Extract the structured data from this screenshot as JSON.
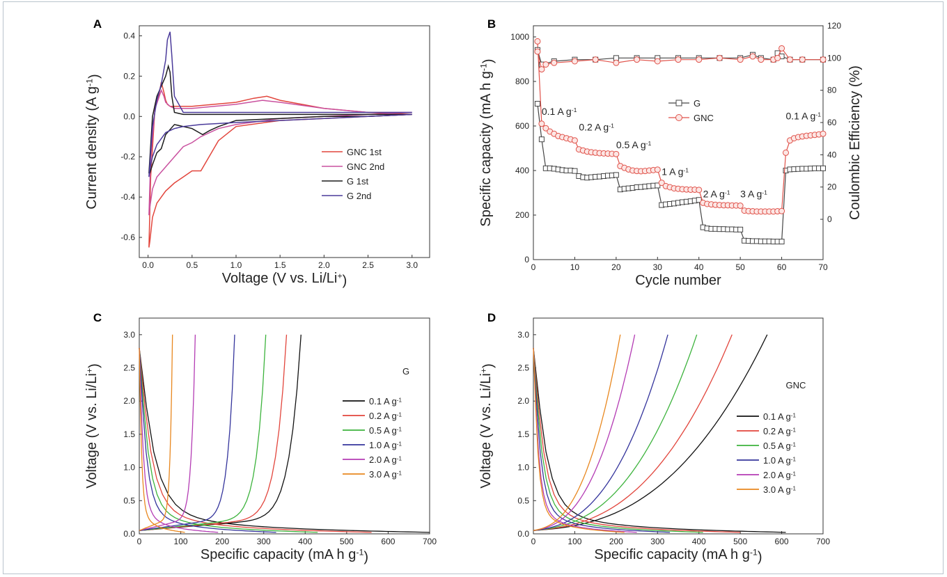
{
  "figure": {
    "labels": [
      "A",
      "B",
      "C",
      "D"
    ]
  },
  "chart_data": [
    {
      "panel": "A",
      "type": "line",
      "xlabel": "Voltage (V vs. Li/Li",
      "xlabel_sup": "+",
      "xlabel_tail": ")",
      "ylabel": "Current density (A g",
      "ylabel_sup": "-1",
      "ylabel_tail": ")",
      "xlim": [
        -0.1,
        3.2
      ],
      "ylim": [
        -0.7,
        0.45
      ],
      "xticks": [
        "0.0",
        "0.5",
        "1.0",
        "1.5",
        "2.0",
        "2.5",
        "3.0"
      ],
      "yticks": [
        "-0.6",
        "-0.4",
        "-0.2",
        "0.0",
        "0.2",
        "0.4"
      ],
      "legend_position": "right",
      "series": [
        {
          "name": "GNC 1st",
          "color": "#e2453c",
          "x": [
            3.0,
            2.5,
            2.0,
            1.5,
            1.0,
            0.8,
            0.6,
            0.5,
            0.4,
            0.3,
            0.2,
            0.1,
            0.05,
            0.02,
            0.01,
            0.03,
            0.08,
            0.12,
            0.15,
            0.18,
            0.2,
            0.22,
            0.25,
            0.3,
            0.5,
            1.0,
            1.2,
            1.35,
            1.5,
            2.0,
            2.5,
            3.0
          ],
          "y": [
            0.01,
            0.0,
            -0.01,
            -0.02,
            -0.05,
            -0.12,
            -0.27,
            -0.27,
            -0.3,
            -0.33,
            -0.37,
            -0.43,
            -0.5,
            -0.62,
            -0.65,
            -0.3,
            0.05,
            0.1,
            0.17,
            0.12,
            0.08,
            0.06,
            0.05,
            0.05,
            0.05,
            0.07,
            0.09,
            0.1,
            0.08,
            0.04,
            0.02,
            0.01
          ]
        },
        {
          "name": "GNC 2nd",
          "color": "#c9519f",
          "x": [
            3.0,
            2.5,
            2.0,
            1.5,
            1.0,
            0.8,
            0.6,
            0.5,
            0.4,
            0.3,
            0.2,
            0.1,
            0.05,
            0.02,
            0.01,
            0.03,
            0.08,
            0.12,
            0.15,
            0.18,
            0.2,
            0.25,
            0.3,
            0.5,
            1.0,
            1.3,
            1.5,
            2.0,
            2.5,
            3.0
          ],
          "y": [
            0.02,
            0.01,
            0.0,
            -0.01,
            -0.04,
            -0.06,
            -0.1,
            -0.13,
            -0.15,
            -0.2,
            -0.25,
            -0.3,
            -0.36,
            -0.45,
            -0.49,
            -0.2,
            0.04,
            0.09,
            0.13,
            0.1,
            0.07,
            0.05,
            0.04,
            0.04,
            0.06,
            0.08,
            0.07,
            0.04,
            0.02,
            0.02
          ]
        },
        {
          "name": "G 1st",
          "color": "#1c1c1c",
          "x": [
            3.0,
            2.5,
            2.0,
            1.5,
            1.0,
            0.8,
            0.7,
            0.62,
            0.5,
            0.3,
            0.2,
            0.15,
            0.1,
            0.05,
            0.02,
            0.01,
            0.05,
            0.1,
            0.15,
            0.2,
            0.23,
            0.25,
            0.27,
            0.3,
            0.4,
            0.6,
            1.0,
            1.5,
            2.0,
            2.5,
            3.0
          ],
          "y": [
            0.01,
            0.0,
            0.0,
            -0.01,
            -0.02,
            -0.05,
            -0.07,
            -0.09,
            -0.06,
            -0.04,
            -0.09,
            -0.16,
            -0.18,
            -0.24,
            -0.28,
            -0.28,
            0.0,
            0.1,
            0.15,
            0.2,
            0.25,
            0.22,
            0.1,
            0.02,
            0.01,
            0.01,
            0.01,
            0.01,
            0.01,
            0.01,
            0.01
          ]
        },
        {
          "name": "G 2nd",
          "color": "#4a3a9a",
          "x": [
            3.0,
            2.5,
            2.0,
            1.5,
            1.0,
            0.6,
            0.4,
            0.3,
            0.2,
            0.1,
            0.05,
            0.02,
            0.01,
            0.05,
            0.1,
            0.15,
            0.2,
            0.22,
            0.25,
            0.27,
            0.3,
            0.4,
            0.6,
            1.0,
            1.5,
            2.0,
            2.5,
            3.0
          ],
          "y": [
            0.01,
            0.0,
            -0.01,
            -0.02,
            -0.03,
            -0.04,
            -0.05,
            -0.06,
            -0.08,
            -0.14,
            -0.2,
            -0.26,
            -0.3,
            -0.05,
            0.08,
            0.16,
            0.28,
            0.38,
            0.42,
            0.3,
            0.1,
            0.02,
            0.02,
            0.02,
            0.02,
            0.02,
            0.02,
            0.02
          ]
        }
      ]
    },
    {
      "panel": "B",
      "type": "scatter",
      "xlabel": "Cycle number",
      "ylabel": "Specific capacity (mA h g",
      "ylabel_sup": "-1",
      "ylabel_tail": ")",
      "y2label": "Coulombic Efficiency (%)",
      "xlim": [
        0,
        70
      ],
      "ylim": [
        0,
        1050
      ],
      "y2lim": [
        -25,
        120
      ],
      "xticks": [
        "0",
        "10",
        "20",
        "30",
        "40",
        "50",
        "60",
        "70"
      ],
      "yticks": [
        "0",
        "200",
        "400",
        "600",
        "800",
        "1000"
      ],
      "y2ticks": [
        "0",
        "20",
        "40",
        "60",
        "80",
        "100",
        "120"
      ],
      "legend_position": "center-right",
      "annotations": [
        {
          "text": "0.1 A g",
          "sup": "-1",
          "x": 2,
          "y": 650
        },
        {
          "text": "0.2 A g",
          "sup": "-1",
          "x": 11,
          "y": 580
        },
        {
          "text": "0.5 A g",
          "sup": "-1",
          "x": 20,
          "y": 500
        },
        {
          "text": "1 A g",
          "sup": "-1",
          "x": 31,
          "y": 380
        },
        {
          "text": "2 A g",
          "sup": "-1",
          "x": 41,
          "y": 280
        },
        {
          "text": "3 A g",
          "sup": "-1",
          "x": 50,
          "y": 280
        },
        {
          "text": "0.1 A g",
          "sup": "-1",
          "x": 61,
          "y": 630
        }
      ],
      "series": [
        {
          "name": "G",
          "color": "#444444",
          "marker": "square",
          "axis": "left",
          "x": [
            1,
            2,
            3,
            4,
            5,
            6,
            7,
            8,
            9,
            10,
            11,
            12,
            13,
            14,
            15,
            16,
            17,
            18,
            19,
            20,
            21,
            22,
            23,
            24,
            25,
            26,
            27,
            28,
            29,
            30,
            31,
            32,
            33,
            34,
            35,
            36,
            37,
            38,
            39,
            40,
            41,
            42,
            43,
            44,
            45,
            46,
            47,
            48,
            49,
            50,
            51,
            52,
            53,
            54,
            55,
            56,
            57,
            58,
            59,
            60,
            61,
            62,
            63,
            64,
            65,
            66,
            67,
            68,
            69,
            70
          ],
          "y": [
            700,
            540,
            410,
            410,
            408,
            405,
            402,
            400,
            400,
            398,
            375,
            370,
            368,
            370,
            372,
            373,
            375,
            377,
            378,
            380,
            315,
            318,
            320,
            322,
            325,
            326,
            328,
            330,
            332,
            333,
            245,
            248,
            250,
            252,
            255,
            258,
            260,
            262,
            265,
            268,
            145,
            140,
            138,
            138,
            137,
            137,
            136,
            136,
            135,
            135,
            85,
            84,
            83,
            83,
            82,
            82,
            82,
            81,
            81,
            81,
            400,
            405,
            406,
            407,
            408,
            408,
            409,
            410,
            410,
            410
          ]
        },
        {
          "name": "GNC",
          "color": "#e0524a",
          "marker": "circle",
          "axis": "left",
          "x": [
            1,
            2,
            3,
            4,
            5,
            6,
            7,
            8,
            9,
            10,
            11,
            12,
            13,
            14,
            15,
            16,
            17,
            18,
            19,
            20,
            21,
            22,
            23,
            24,
            25,
            26,
            27,
            28,
            29,
            30,
            31,
            32,
            33,
            34,
            35,
            36,
            37,
            38,
            39,
            40,
            41,
            42,
            43,
            44,
            45,
            46,
            47,
            48,
            49,
            50,
            51,
            52,
            53,
            54,
            55,
            56,
            57,
            58,
            59,
            60,
            61,
            62,
            63,
            64,
            65,
            66,
            67,
            68,
            69,
            70
          ],
          "y": [
            980,
            610,
            590,
            575,
            565,
            555,
            550,
            545,
            540,
            535,
            495,
            490,
            485,
            482,
            480,
            478,
            477,
            476,
            475,
            474,
            420,
            412,
            405,
            400,
            398,
            397,
            398,
            400,
            402,
            404,
            345,
            330,
            325,
            320,
            318,
            316,
            315,
            314,
            314,
            313,
            255,
            250,
            248,
            246,
            245,
            244,
            244,
            243,
            243,
            242,
            220,
            218,
            217,
            216,
            216,
            216,
            216,
            216,
            217,
            218,
            480,
            535,
            545,
            550,
            553,
            556,
            558,
            560,
            562,
            565
          ]
        },
        {
          "name": "G",
          "color": "#444444",
          "marker": "square",
          "axis": "right",
          "x": [
            1,
            2,
            5,
            10,
            15,
            20,
            25,
            30,
            35,
            40,
            45,
            50,
            53,
            55,
            58,
            59,
            60,
            62,
            65,
            70
          ],
          "y": [
            105,
            96,
            98,
            99,
            99,
            100,
            100,
            100,
            100,
            100,
            100,
            100,
            102,
            100,
            99,
            103,
            101,
            99,
            99,
            99
          ]
        },
        {
          "name": "GNC",
          "color": "#e0524a",
          "marker": "circle",
          "axis": "right",
          "x": [
            1,
            2,
            3,
            5,
            10,
            15,
            20,
            25,
            30,
            35,
            40,
            45,
            50,
            53,
            55,
            58,
            59,
            60,
            62,
            65,
            70
          ],
          "y": [
            104,
            93,
            96,
            97,
            98,
            99,
            97,
            99,
            98,
            99,
            99,
            100,
            99,
            101,
            99,
            99,
            100,
            106,
            99,
            99,
            99
          ]
        }
      ]
    },
    {
      "panel": "C",
      "type": "line",
      "xlabel": "Specific capacity (mA h g",
      "xlabel_sup": "-1",
      "xlabel_tail": ")",
      "ylabel": "Voltage (V vs. Li/Li",
      "ylabel_sup": "+",
      "ylabel_tail": ")",
      "xlim": [
        0,
        700
      ],
      "ylim": [
        0,
        3.25
      ],
      "xticks": [
        "0",
        "100",
        "200",
        "300",
        "400",
        "500",
        "600",
        "700"
      ],
      "yticks": [
        "0.0",
        "0.5",
        "1.0",
        "1.5",
        "2.0",
        "2.5",
        "3.0"
      ],
      "legend_title": "G",
      "legend_position": "right",
      "series": [
        {
          "name": "0.1 A g",
          "sup": "-1",
          "color": "#111111",
          "discharge_end": 700,
          "charge_end": 390
        },
        {
          "name": "0.2 A g",
          "sup": "-1",
          "color": "#e2453c",
          "discharge_end": 560,
          "charge_end": 355
        },
        {
          "name": "0.5 A g",
          "sup": "-1",
          "color": "#3cb33c",
          "discharge_end": 430,
          "charge_end": 305
        },
        {
          "name": "1.0 A g",
          "sup": "-1",
          "color": "#34349c",
          "discharge_end": 330,
          "charge_end": 230
        },
        {
          "name": "2.0 A g",
          "sup": "-1",
          "color": "#b43cb4",
          "discharge_end": 190,
          "charge_end": 135
        },
        {
          "name": "3.0 A g",
          "sup": "-1",
          "color": "#e8871e",
          "discharge_end": 110,
          "charge_end": 80
        }
      ]
    },
    {
      "panel": "D",
      "type": "line",
      "xlabel": "Specific capacity (mA h g",
      "xlabel_sup": "-1",
      "xlabel_tail": ")",
      "ylabel": "Voltage (V vs. Li/Li",
      "ylabel_sup": "+",
      "ylabel_tail": ")",
      "xlim": [
        0,
        700
      ],
      "ylim": [
        0,
        3.25
      ],
      "xticks": [
        "0",
        "100",
        "200",
        "300",
        "400",
        "500",
        "600",
        "700"
      ],
      "yticks": [
        "0.0",
        "0.5",
        "1.0",
        "1.5",
        "2.0",
        "2.5",
        "3.0"
      ],
      "legend_title": "GNC",
      "legend_position": "right",
      "series": [
        {
          "name": "0.1 A g",
          "sup": "-1",
          "color": "#111111",
          "discharge_end": 610,
          "charge_end": 565
        },
        {
          "name": "0.2 A g",
          "sup": "-1",
          "color": "#e2453c",
          "discharge_end": 500,
          "charge_end": 480
        },
        {
          "name": "0.5 A g",
          "sup": "-1",
          "color": "#3cb33c",
          "discharge_end": 410,
          "charge_end": 395
        },
        {
          "name": "1.0 A g",
          "sup": "-1",
          "color": "#34349c",
          "discharge_end": 330,
          "charge_end": 325
        },
        {
          "name": "2.0 A g",
          "sup": "-1",
          "color": "#b43cb4",
          "discharge_end": 250,
          "charge_end": 245
        },
        {
          "name": "3.0 A g",
          "sup": "-1",
          "color": "#e8871e",
          "discharge_end": 220,
          "charge_end": 210
        }
      ]
    }
  ]
}
